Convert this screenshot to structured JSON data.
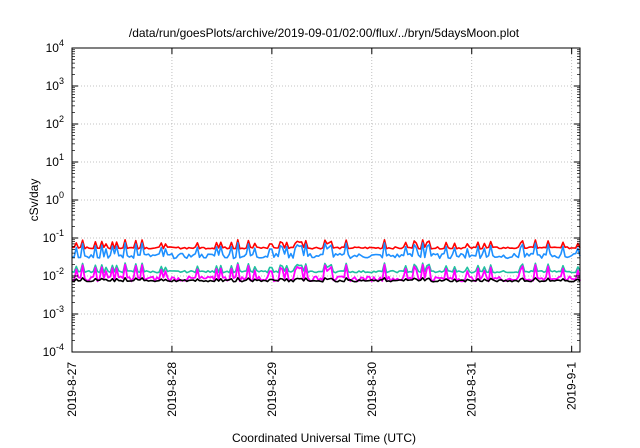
{
  "chart_data": {
    "type": "line",
    "title": "/data/run/goesPlots/archive/2019-09-01/02:00/flux/../bryn/5daysMoon.plot",
    "xlabel": "Coordinated Universal Time (UTC)",
    "ylabel": "cSv/day",
    "y_scale": "log",
    "ylim": [
      0.0001,
      10000
    ],
    "y_ticks": [
      {
        "base": "10",
        "exp": "-4"
      },
      {
        "base": "10",
        "exp": "-3"
      },
      {
        "base": "10",
        "exp": "-2"
      },
      {
        "base": "10",
        "exp": "-1"
      },
      {
        "base": "10",
        "exp": "0"
      },
      {
        "base": "10",
        "exp": "1"
      },
      {
        "base": "10",
        "exp": "2"
      },
      {
        "base": "10",
        "exp": "3"
      },
      {
        "base": "10",
        "exp": "4"
      }
    ],
    "x_range": [
      "2019-08-27",
      "2019-09-01 02:00"
    ],
    "x_ticks": [
      "2019-8-27",
      "2019-8-28",
      "2019-8-29",
      "2019-8-30",
      "2019-8-31",
      "2019-9-1"
    ],
    "grid": true,
    "series": [
      {
        "color": "#ff0000",
        "baseline": 0.055,
        "spike": 0.09,
        "smooth": true
      },
      {
        "color": "#1e90ff",
        "baseline": 0.034,
        "spike": 0.075,
        "smooth": false
      },
      {
        "color": "#20c0a0",
        "baseline": 0.013,
        "spike": 0.022,
        "smooth": true
      },
      {
        "color": "#ff00ff",
        "baseline": 0.0085,
        "spike": 0.02,
        "smooth": false
      },
      {
        "color": "#000000",
        "baseline": 0.0075,
        "spike": 0.009,
        "smooth": true
      }
    ]
  }
}
